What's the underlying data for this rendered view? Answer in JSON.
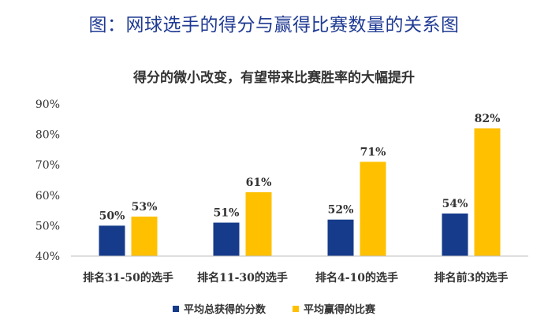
{
  "page": {
    "title": "图：网球选手的得分与赢得比赛数量的关系图"
  },
  "colors": {
    "title_blue": "#1f3a93",
    "series_1": "#153b8a",
    "series_2": "#ffc000",
    "axis": "#bfbfbf",
    "text": "#333333"
  },
  "chart_data": {
    "type": "bar",
    "title": "得分的微小改变，有望带来比赛胜率的大幅提升",
    "categories": [
      "排名31-50的选手",
      "排名11-30的选手",
      "排名4-10的选手",
      "排名前3的选手"
    ],
    "series": [
      {
        "name": "平均总获得的分数",
        "values": [
          50,
          51,
          52,
          54
        ],
        "labels": [
          "50%",
          "51%",
          "52%",
          "54%"
        ]
      },
      {
        "name": "平均赢得的比赛",
        "values": [
          53,
          61,
          71,
          82
        ],
        "labels": [
          "53%",
          "61%",
          "71%",
          "82%"
        ]
      }
    ],
    "ylim": [
      40,
      90
    ],
    "yticks": [
      "40%",
      "50%",
      "60%",
      "70%",
      "80%",
      "90%"
    ],
    "xlabel": "",
    "ylabel": "",
    "grid": false,
    "legend_position": "bottom"
  }
}
